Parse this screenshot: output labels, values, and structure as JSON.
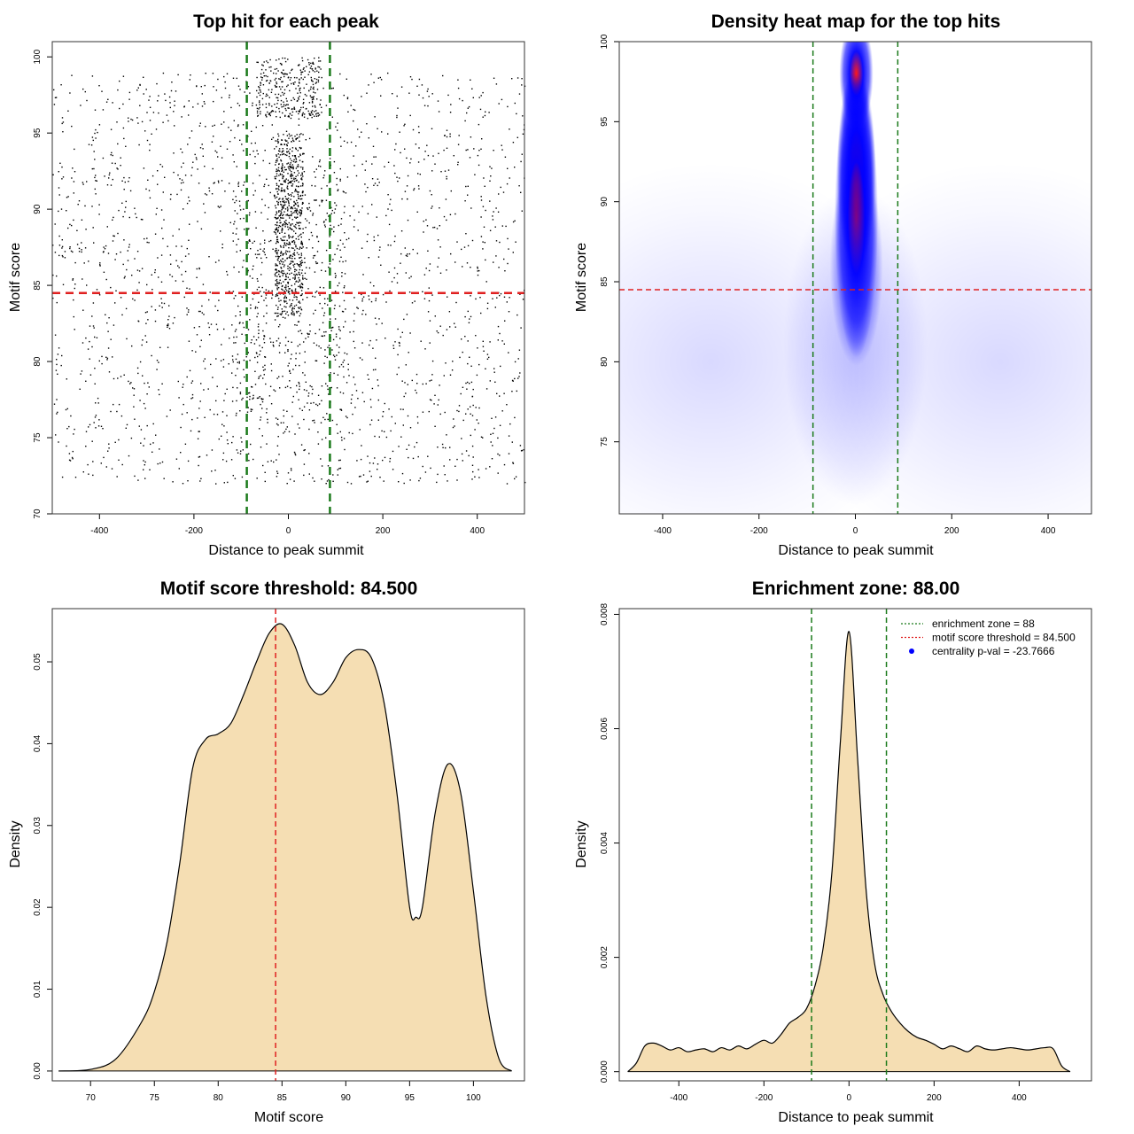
{
  "chart_data": [
    {
      "id": "scatter",
      "type": "scatter",
      "title": "Top hit for each peak",
      "xlabel": "Distance to peak summit",
      "ylabel": "Motif score",
      "xlim": [
        -500,
        500
      ],
      "ylim": [
        70,
        101
      ],
      "x_ticks": [
        -400,
        -200,
        0,
        200,
        400
      ],
      "y_ticks": [
        70,
        75,
        80,
        85,
        90,
        95,
        100
      ],
      "vlines": [
        -88,
        88
      ],
      "hline": 84.5,
      "colors": {
        "points": "#000000",
        "vline": "#1a7a1a",
        "hline": "#e02020"
      },
      "point_groups": [
        {
          "x_range": [
            -500,
            500
          ],
          "y_range": [
            72,
            99
          ],
          "count": 2000
        },
        {
          "x_range": [
            -30,
            30
          ],
          "y_range": [
            83,
            95
          ],
          "count": 700
        },
        {
          "x_range": [
            -70,
            70
          ],
          "y_range": [
            96,
            100
          ],
          "count": 300
        },
        {
          "x_range": [
            -120,
            120
          ],
          "y_range": [
            76,
            92
          ],
          "count": 400
        }
      ]
    },
    {
      "id": "heatmap",
      "type": "heatmap",
      "title": "Density heat map for the top hits",
      "xlabel": "Distance to peak summit",
      "ylabel": "Motif score",
      "xlim": [
        -490,
        490
      ],
      "ylim": [
        70.5,
        100
      ],
      "x_ticks": [
        -400,
        -200,
        0,
        200,
        400
      ],
      "y_ticks": [
        75,
        80,
        85,
        90,
        95,
        100
      ],
      "vlines": [
        -88,
        88
      ],
      "hline": 84.5,
      "colors": {
        "low": "#ffffff",
        "mid": "#0000ff",
        "high": "#ff0000",
        "vline": "#1a7a1a",
        "hline": "#e02020"
      },
      "density_blobs": [
        {
          "cx": 2,
          "cy": 92,
          "sx": 16,
          "sy": 2.5,
          "weight": 1.0
        },
        {
          "cx": 2,
          "cy": 98,
          "sx": 14,
          "sy": 1.4,
          "weight": 0.8
        },
        {
          "cx": 2,
          "cy": 89,
          "sx": 18,
          "sy": 3.5,
          "weight": 0.7
        },
        {
          "cx": 2,
          "cy": 86,
          "sx": 22,
          "sy": 2.5,
          "weight": 0.45
        },
        {
          "cx": 0,
          "cy": 95.5,
          "sx": 12,
          "sy": 1.0,
          "weight": 0.35
        },
        {
          "cx": 0,
          "cy": 81,
          "sx": 60,
          "sy": 4,
          "weight": 0.1
        },
        {
          "cx": -300,
          "cy": 80,
          "sx": 180,
          "sy": 5,
          "weight": 0.05
        },
        {
          "cx": 300,
          "cy": 80,
          "sx": 180,
          "sy": 5,
          "weight": 0.05
        }
      ]
    },
    {
      "id": "score-density",
      "type": "area",
      "title": "Motif score threshold: 84.500",
      "xlabel": "Motif score",
      "ylabel": "Density",
      "xlim": [
        67,
        104
      ],
      "ylim": [
        -0.0012,
        0.0565
      ],
      "x_ticks": [
        70,
        75,
        80,
        85,
        90,
        95,
        100
      ],
      "y_ticks": [
        0.0,
        0.01,
        0.02,
        0.03,
        0.04,
        0.05
      ],
      "y_tick_labels": [
        "0.00",
        "0.01",
        "0.02",
        "0.03",
        "0.04",
        "0.05"
      ],
      "vline": 84.5,
      "colors": {
        "fill": "#f5deb3",
        "line": "#000000",
        "vline": "#e02020"
      },
      "x": [
        67.5,
        70,
        72,
        74,
        75,
        76,
        77,
        78,
        79,
        80,
        81,
        82,
        83,
        84,
        85,
        86,
        87,
        88,
        89,
        90,
        91,
        92,
        93,
        94,
        95,
        95.5,
        96,
        97,
        98,
        99,
        100,
        101,
        102,
        103
      ],
      "values": [
        0.0,
        0.0002,
        0.0015,
        0.006,
        0.0097,
        0.0158,
        0.0255,
        0.037,
        0.0405,
        0.0412,
        0.0425,
        0.046,
        0.05,
        0.0535,
        0.0546,
        0.052,
        0.0475,
        0.046,
        0.0475,
        0.0505,
        0.0515,
        0.0505,
        0.045,
        0.034,
        0.02,
        0.0188,
        0.02,
        0.0315,
        0.0375,
        0.034,
        0.022,
        0.009,
        0.0015,
        0.0
      ]
    },
    {
      "id": "distance-density",
      "type": "area",
      "title": "Enrichment zone: 88.00",
      "xlabel": "Distance to peak summit",
      "ylabel": "Density",
      "xlim": [
        -540,
        570
      ],
      "ylim": [
        -0.00016,
        0.0081
      ],
      "x_ticks": [
        -400,
        -200,
        0,
        200,
        400
      ],
      "y_ticks": [
        0.0,
        0.002,
        0.004,
        0.006,
        0.008
      ],
      "y_tick_labels": [
        "0.000",
        "0.002",
        "0.004",
        "0.006",
        "0.008"
      ],
      "vlines": [
        -88,
        88
      ],
      "colors": {
        "fill": "#f5deb3",
        "line": "#000000",
        "vline": "#1a7a1a",
        "threshold": "#e02020",
        "pval": "#0000ff"
      },
      "x": [
        -520,
        -500,
        -480,
        -460,
        -440,
        -420,
        -400,
        -380,
        -360,
        -340,
        -320,
        -300,
        -280,
        -260,
        -240,
        -220,
        -200,
        -180,
        -160,
        -140,
        -120,
        -100,
        -80,
        -60,
        -40,
        -20,
        0,
        20,
        40,
        60,
        80,
        100,
        120,
        140,
        160,
        180,
        200,
        220,
        240,
        260,
        280,
        300,
        320,
        340,
        360,
        380,
        400,
        420,
        440,
        460,
        480,
        500,
        520
      ],
      "values": [
        0.0,
        0.00015,
        0.00045,
        0.0005,
        0.00045,
        0.00038,
        0.00042,
        0.00035,
        0.00038,
        0.0004,
        0.00035,
        0.00042,
        0.00038,
        0.00045,
        0.0004,
        0.00048,
        0.00055,
        0.0005,
        0.00065,
        0.00085,
        0.00095,
        0.0011,
        0.0015,
        0.0022,
        0.0035,
        0.0058,
        0.0077,
        0.0055,
        0.0032,
        0.0019,
        0.00135,
        0.00105,
        0.00085,
        0.0007,
        0.0006,
        0.00055,
        0.00048,
        0.0004,
        0.00045,
        0.0004,
        0.00035,
        0.00045,
        0.0004,
        0.00038,
        0.0004,
        0.00042,
        0.0004,
        0.00038,
        0.0004,
        0.00042,
        0.0004,
        0.0001,
        0.0
      ],
      "legend": [
        {
          "label": "enrichment zone = 88",
          "style": "dotted",
          "color": "#1a7a1a"
        },
        {
          "label": "motif score threshold = 84.500",
          "style": "dotted",
          "color": "#e02020"
        },
        {
          "label": "centrality p-val = -23.7666",
          "style": "dot",
          "color": "#0000ff"
        }
      ]
    }
  ]
}
